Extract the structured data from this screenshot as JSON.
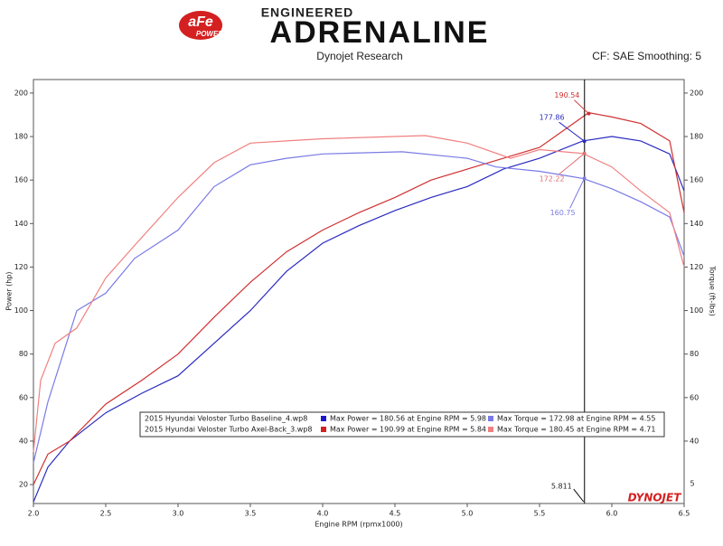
{
  "header": {
    "logo": "aFe",
    "logo_sub": "POWER",
    "tagline": "ENGINEERED",
    "title": "ADRENALINE",
    "source": "Dynojet Research",
    "correction": "CF: SAE Smoothing: 5"
  },
  "chart_data": {
    "type": "line",
    "x_label": "Engine RPM (rpmx1000)",
    "y_label": "Power (hp)",
    "y2_label": "Torque (ft-lbs)",
    "xlim": [
      2.0,
      6.5
    ],
    "xticks": [
      {
        "value": 2,
        "label": "2.0"
      },
      2.5,
      {
        "value": 3,
        "label": "3.0"
      },
      3.5,
      {
        "value": 4,
        "label": "4.0"
      },
      4.5,
      {
        "value": 5,
        "label": "5.0"
      },
      5.5,
      {
        "value": 6,
        "label": "6.0"
      },
      6.5
    ],
    "ylim": [
      11.3,
      206.2
    ],
    "yticks": [
      20,
      40,
      60,
      80,
      100,
      120,
      140,
      160,
      180,
      200
    ],
    "y2lim": [
      11.3,
      206.2
    ],
    "y2ticks": [
      40,
      60,
      80,
      100,
      120,
      140,
      160,
      180,
      200
    ],
    "y2_bottom_label": "5",
    "cursor_x": 5.811,
    "series": [
      {
        "name": "2015 Hyundai Veloster Turbo Baseline_4.wp8",
        "legend_stats": [
          "Max Power = 180.56 at Engine RPM = 5.98",
          "Max Torque = 172.98 at Engine RPM = 4.55"
        ],
        "legend_colors": [
          "#1a1acc",
          "#7a7ae6"
        ]
      },
      {
        "name": "2015 Hyundai Veloster Turbo Axel-Back_3.wp8",
        "legend_stats": [
          "Max Power = 190.99 at Engine RPM = 5.84",
          "Max Torque = 180.45 at Engine RPM = 4.71"
        ],
        "legend_colors": [
          "#d42020",
          "#f08080"
        ]
      }
    ],
    "lines": [
      {
        "color": "#2a2ac0",
        "x": [
          2.0,
          2.1,
          2.25,
          2.5,
          2.75,
          3.0,
          3.25,
          3.5,
          3.75,
          4.0,
          4.25,
          4.5,
          4.75,
          5.0,
          5.25,
          5.5,
          5.8,
          6.0,
          6.2,
          6.4,
          6.5
        ],
        "values": [
          12,
          28,
          40,
          53,
          62,
          70,
          85,
          100,
          118,
          131,
          139,
          146,
          152,
          157,
          165,
          170,
          178,
          180,
          178,
          172,
          155
        ]
      },
      {
        "color": "#d03030",
        "x": [
          2.0,
          2.1,
          2.25,
          2.5,
          2.75,
          3.0,
          3.25,
          3.5,
          3.75,
          4.0,
          4.25,
          4.5,
          4.75,
          5.0,
          5.25,
          5.5,
          5.84,
          6.0,
          6.2,
          6.4,
          6.5
        ],
        "values": [
          20,
          34,
          40,
          57,
          68,
          80,
          97,
          113,
          127,
          137,
          145,
          152,
          160,
          165,
          170,
          175,
          191,
          189,
          186,
          178,
          145
        ]
      },
      {
        "color": "#7a7ae6",
        "axis": "y2",
        "x": [
          2.0,
          2.1,
          2.3,
          2.5,
          2.7,
          3.0,
          3.25,
          3.5,
          3.75,
          4.0,
          4.55,
          5.0,
          5.2,
          5.5,
          5.8,
          6.0,
          6.2,
          6.4,
          6.5
        ],
        "values": [
          30,
          58,
          100,
          108,
          124,
          137,
          157,
          167,
          170,
          172,
          173,
          170,
          166,
          164,
          160.75,
          156,
          150,
          143,
          125
        ]
      },
      {
        "color": "#f08080",
        "axis": "y2",
        "x": [
          2.0,
          2.05,
          2.15,
          2.3,
          2.5,
          2.7,
          3.0,
          3.25,
          3.5,
          3.75,
          4.0,
          4.5,
          4.71,
          5.0,
          5.3,
          5.5,
          5.8,
          6.0,
          6.2,
          6.4,
          6.5
        ],
        "values": [
          35,
          68,
          85,
          92,
          115,
          130,
          152,
          168,
          177,
          178,
          179,
          180,
          180.45,
          177,
          170,
          174,
          172.22,
          166,
          155,
          145,
          120
        ]
      }
    ],
    "annotations": [
      {
        "label": "190.54",
        "x": 5.84,
        "y": 190.54,
        "color": "#d03030"
      },
      {
        "label": "177.86",
        "x": 5.81,
        "y": 177.86,
        "color": "#2a2ac0"
      },
      {
        "label": "172.22",
        "x": 5.81,
        "y": 172.22,
        "color": "#e07070"
      },
      {
        "label": "160.75",
        "x": 5.81,
        "y": 160.75,
        "color": "#7a7ae6"
      }
    ],
    "brand": "DYNOJET"
  }
}
